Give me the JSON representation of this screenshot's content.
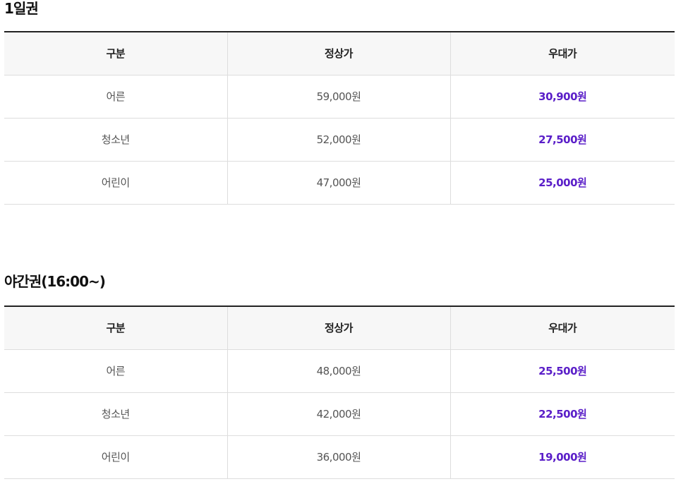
{
  "sections": [
    {
      "title": "1일권",
      "headers": [
        "구분",
        "정상가",
        "우대가"
      ],
      "rows": [
        {
          "category": "어른",
          "regular": "59,000원",
          "discount": "30,900원"
        },
        {
          "category": "청소년",
          "regular": "52,000원",
          "discount": "27,500원"
        },
        {
          "category": "어린이",
          "regular": "47,000원",
          "discount": "25,000원"
        }
      ]
    },
    {
      "title": "야간권(16:00~)",
      "headers": [
        "구분",
        "정상가",
        "우대가"
      ],
      "rows": [
        {
          "category": "어른",
          "regular": "48,000원",
          "discount": "25,500원"
        },
        {
          "category": "청소년",
          "regular": "42,000원",
          "discount": "22,500원"
        },
        {
          "category": "어린이",
          "regular": "36,000원",
          "discount": "19,000원"
        }
      ]
    }
  ],
  "colors": {
    "discount": "#5a1ec8",
    "header_bg": "#f7f7f7",
    "top_border": "#222222",
    "row_border": "#dddddd"
  }
}
